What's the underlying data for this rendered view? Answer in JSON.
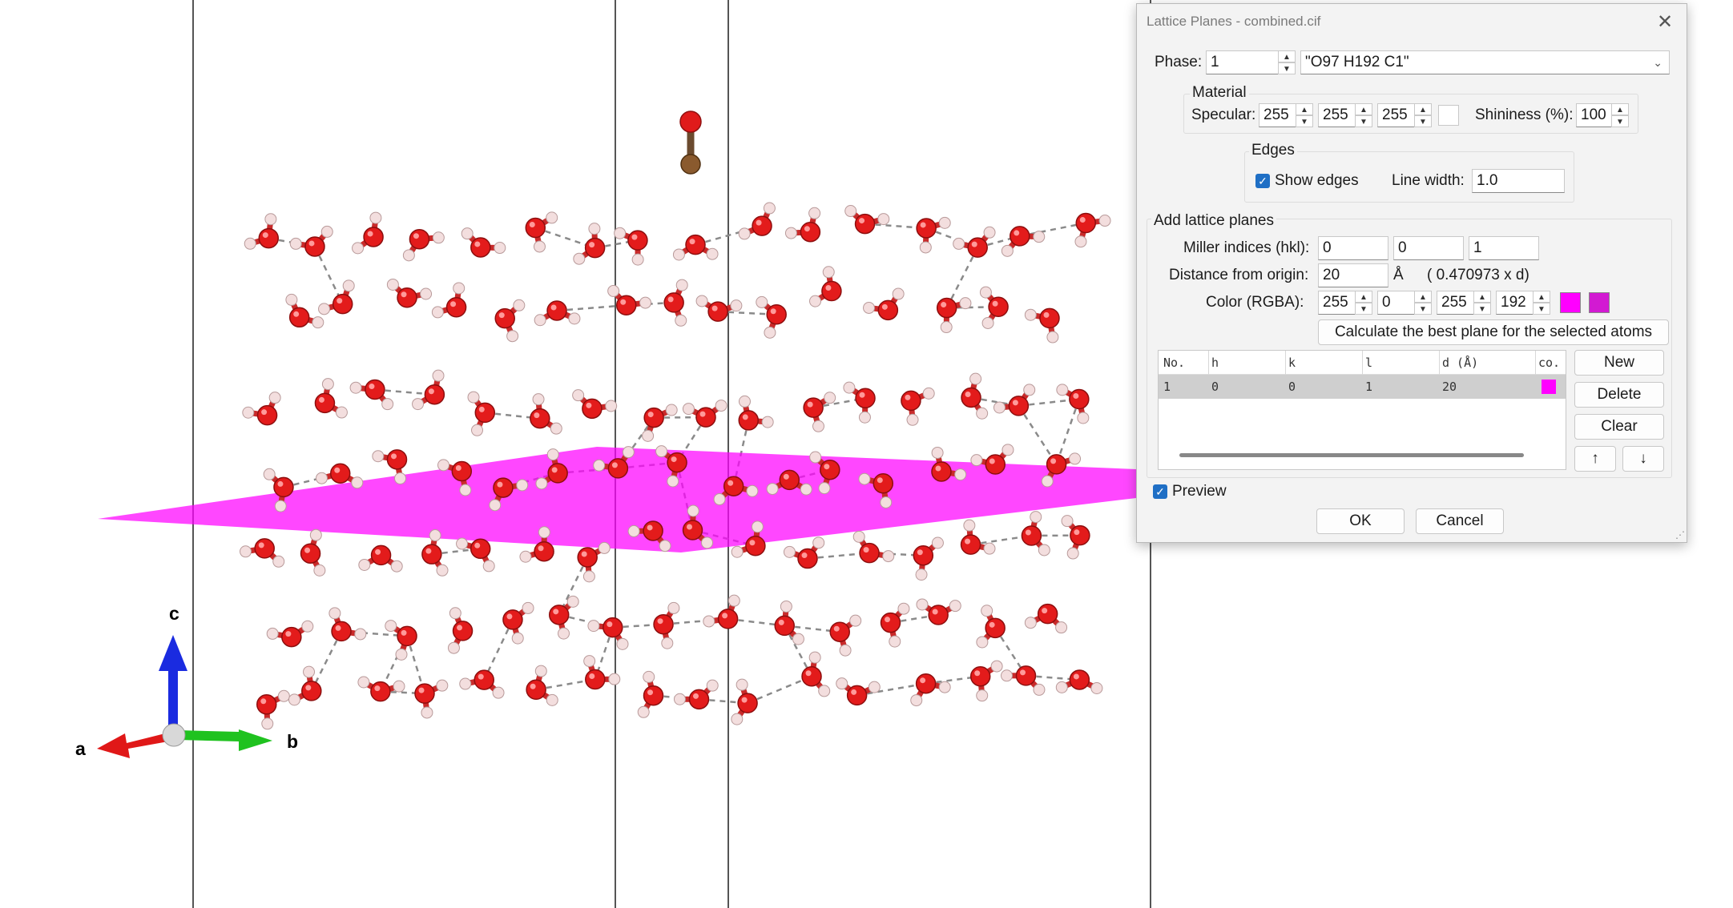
{
  "axes": {
    "a": "a",
    "b": "b",
    "c": "c"
  },
  "dialog": {
    "title": "Lattice Planes - combined.cif",
    "phase_label": "Phase:",
    "phase_value": "1",
    "phase_select": "\"O97 H192 C1\"",
    "material_title": "Material",
    "specular_label": "Specular:",
    "specular": [
      "255",
      "255",
      "255"
    ],
    "shininess_label": "Shininess (%):",
    "shininess": "100",
    "edges_title": "Edges",
    "show_edges_label": "Show edges",
    "line_width_label": "Line width:",
    "line_width": "1.0",
    "add_title": "Add lattice planes",
    "miller_label": "Miller indices (hkl):",
    "miller": [
      "0",
      "0",
      "1"
    ],
    "distance_label": "Distance from origin:",
    "distance": "20",
    "distance_unit": "Å",
    "distance_note": "( 0.470973 x d)",
    "color_label": "Color (RGBA):",
    "rgba": [
      "255",
      "0",
      "255",
      "192"
    ],
    "plane_color": "#ff00ff",
    "calc_button": "Calculate the best plane for the selected atoms",
    "table": {
      "headers": [
        "No.",
        "h",
        "k",
        "l",
        "d (Å)",
        "co."
      ],
      "rows": [
        {
          "no": "1",
          "h": "0",
          "k": "0",
          "l": "1",
          "d": "20"
        }
      ]
    },
    "new_button": "New",
    "delete_button": "Delete",
    "clear_button": "Clear",
    "up_button": "↑",
    "down_button": "↓",
    "preview_label": "Preview",
    "ok_button": "OK",
    "cancel_button": "Cancel"
  }
}
